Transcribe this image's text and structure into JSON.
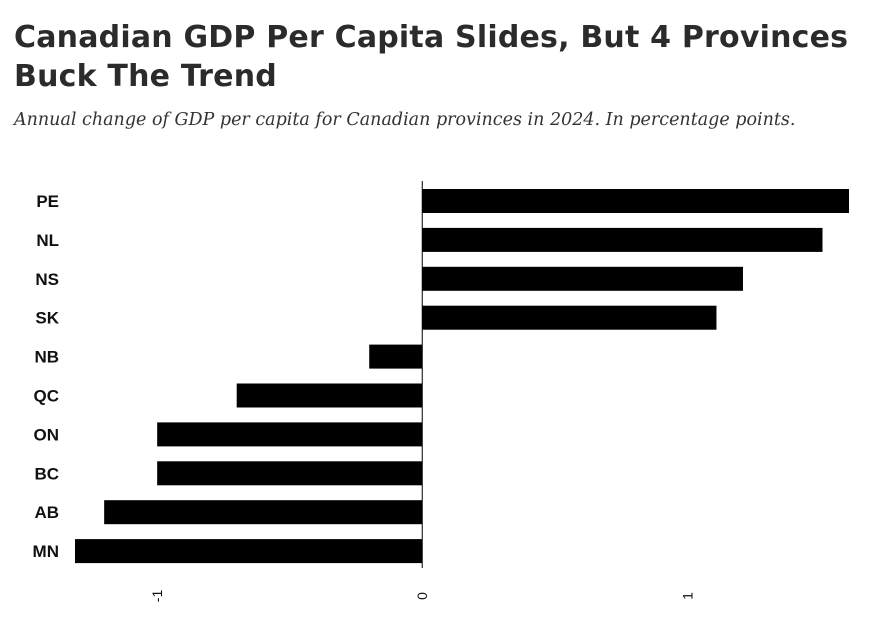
{
  "header": {
    "title": "Canadian GDP Per Capita Slides, But 4 Provinces Buck The Trend",
    "subtitle": "Annual change of GDP per capita for Canadian provinces in 2024. In percentage points."
  },
  "chart_data": {
    "type": "bar",
    "orientation": "horizontal",
    "title": "Canadian GDP Per Capita Slides, But 4 Provinces Buck The Trend",
    "subtitle": "Annual change of GDP per capita for Canadian provinces in 2024. In percentage points.",
    "categories": [
      "PE",
      "NL",
      "NS",
      "SK",
      "NB",
      "QC",
      "ON",
      "BC",
      "AB",
      "MN"
    ],
    "values": [
      1.61,
      1.51,
      1.21,
      1.11,
      -0.2,
      -0.7,
      -1.0,
      -1.0,
      -1.2,
      -1.31
    ],
    "xlim": [
      -1.31,
      1.61
    ],
    "x_ticks": [
      -1,
      0,
      1
    ],
    "x_tick_labels": [
      "-1",
      "0",
      "1"
    ],
    "tick_label_rotation": "vertical",
    "bar_color": "#000000",
    "grid": false,
    "legend": "none"
  }
}
